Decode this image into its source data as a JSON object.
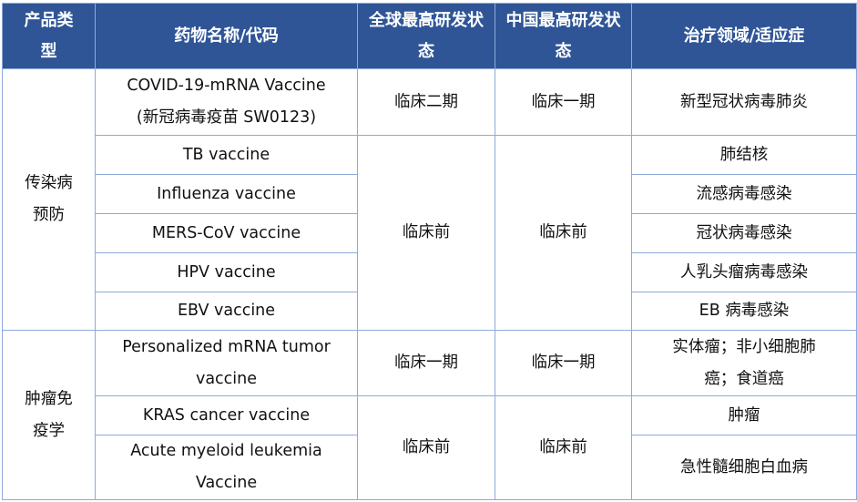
{
  "header": [
    "产品类型",
    "药物名称/代码",
    "全球最高研发状态",
    "中国最高研发状态",
    "治疗领域/适应症"
  ],
  "groups": [
    {
      "category": "传染病预防",
      "rows": [
        {
          "drug": "COVID-19-mRNA Vaccine (新冠病毒疫苗 SW0123)",
          "global": "临床二期",
          "china": "临床一期",
          "indication": "新型冠状病毒肺炎"
        },
        {
          "drug": "TB vaccine",
          "indication": "肺结核"
        },
        {
          "drug": "Influenza vaccine",
          "indication": "流感病毒感染"
        },
        {
          "drug": "MERS-CoV vaccine",
          "indication": "冠状病毒感染"
        },
        {
          "drug": "HPV vaccine",
          "indication": "人乳头瘤病毒感染"
        },
        {
          "drug": "EBV vaccine",
          "indication": "EB 病毒感染"
        }
      ],
      "shared_global": "临床前",
      "shared_china": "临床前"
    },
    {
      "category": "肿瘤免疫学",
      "rows": [
        {
          "drug": "Personalized mRNA tumor vaccine",
          "global": "临床一期",
          "china": "临床一期",
          "indication": "实体瘤；非小细胞肺癌；食道癌"
        },
        {
          "drug": "KRAS cancer vaccine",
          "indication": "肿瘤"
        },
        {
          "drug": "Acute myeloid leukemia Vaccine",
          "indication": "急性髓细胞白血病"
        }
      ],
      "shared_global": "临床前",
      "shared_china": "临床前"
    }
  ],
  "colors": {
    "header_bg": "#2F5597",
    "border": "#8EAADB"
  }
}
